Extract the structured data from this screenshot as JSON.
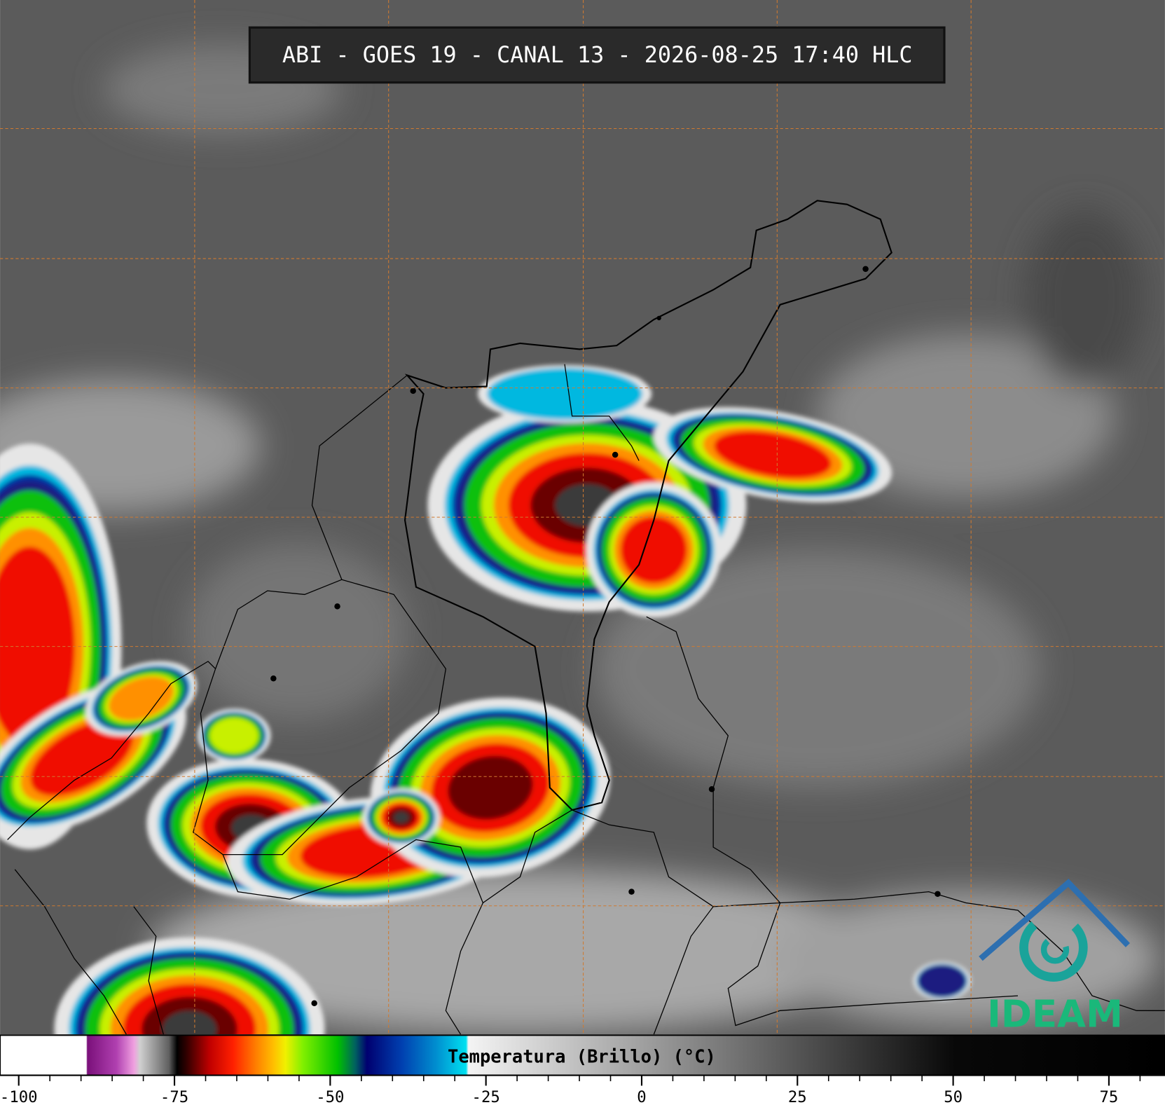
{
  "header": {
    "title": "ABI - GOES 19 - CANAL 13 - 2026-08-25 17:40 HLC"
  },
  "colorbar": {
    "label": "Temperatura (Brillo) (°C)",
    "lim": [
      -103,
      84
    ],
    "ticks": [
      -100,
      -75,
      -50,
      -25,
      0,
      25,
      50,
      75
    ],
    "minor_ticks": [
      -95,
      -90,
      -85,
      -80,
      -70,
      -65,
      -60,
      -55,
      -45,
      -40,
      -35,
      -30,
      -20,
      -15,
      -10,
      -5,
      5,
      10,
      15,
      20,
      30,
      35,
      40,
      45,
      55,
      60,
      65,
      70,
      80
    ]
  },
  "logo": {
    "text": "IDEAM"
  }
}
